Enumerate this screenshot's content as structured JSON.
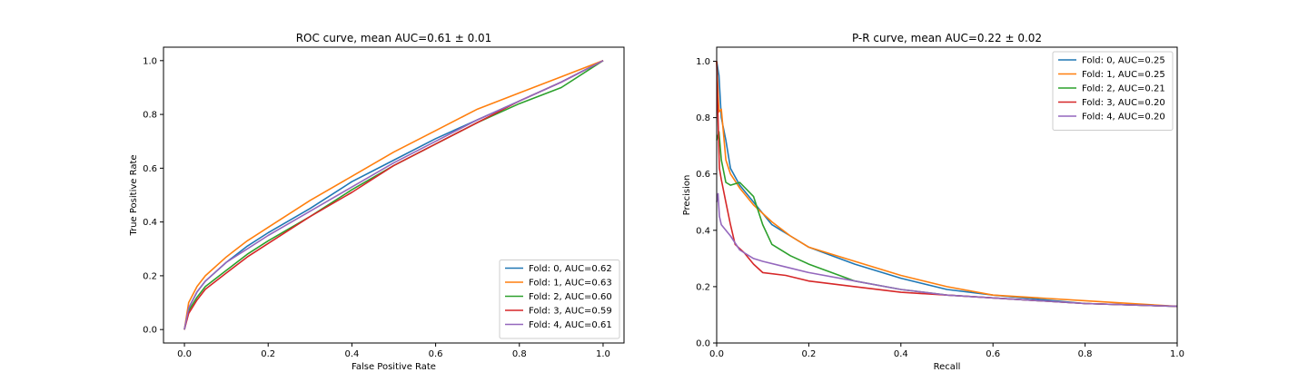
{
  "chart_data": [
    {
      "type": "line",
      "title": "ROC curve, mean AUC=0.61 ± 0.01",
      "xlabel": "False Positive Rate",
      "ylabel": "True Positive Rate",
      "xlim": [
        -0.05,
        1.05
      ],
      "ylim": [
        -0.05,
        1.05
      ],
      "xticks": [
        "0.0",
        "0.2",
        "0.4",
        "0.6",
        "0.8",
        "1.0"
      ],
      "yticks": [
        "0.0",
        "0.2",
        "0.4",
        "0.6",
        "0.8",
        "1.0"
      ],
      "grid": false,
      "legend_position": "lower right",
      "series": [
        {
          "name": "Fold: 0, AUC=0.62",
          "color": "#1f77b4",
          "x": [
            0,
            0.01,
            0.03,
            0.05,
            0.1,
            0.15,
            0.2,
            0.3,
            0.4,
            0.5,
            0.6,
            0.7,
            0.8,
            0.9,
            1.0
          ],
          "y": [
            0,
            0.08,
            0.14,
            0.18,
            0.25,
            0.31,
            0.36,
            0.45,
            0.55,
            0.63,
            0.71,
            0.78,
            0.85,
            0.92,
            1.0
          ]
        },
        {
          "name": "Fold: 1, AUC=0.63",
          "color": "#ff7f0e",
          "x": [
            0,
            0.01,
            0.03,
            0.05,
            0.1,
            0.15,
            0.2,
            0.3,
            0.4,
            0.5,
            0.6,
            0.7,
            0.8,
            0.9,
            1.0
          ],
          "y": [
            0,
            0.1,
            0.16,
            0.2,
            0.27,
            0.33,
            0.38,
            0.48,
            0.57,
            0.66,
            0.74,
            0.82,
            0.88,
            0.94,
            1.0
          ]
        },
        {
          "name": "Fold: 2, AUC=0.60",
          "color": "#2ca02c",
          "x": [
            0,
            0.01,
            0.03,
            0.05,
            0.1,
            0.15,
            0.2,
            0.3,
            0.4,
            0.5,
            0.6,
            0.7,
            0.8,
            0.9,
            1.0
          ],
          "y": [
            0,
            0.07,
            0.12,
            0.16,
            0.22,
            0.28,
            0.33,
            0.42,
            0.52,
            0.61,
            0.69,
            0.77,
            0.84,
            0.9,
            1.0
          ]
        },
        {
          "name": "Fold: 3, AUC=0.59",
          "color": "#d62728",
          "x": [
            0,
            0.01,
            0.03,
            0.05,
            0.1,
            0.15,
            0.2,
            0.3,
            0.4,
            0.5,
            0.6,
            0.7,
            0.8,
            0.9,
            1.0
          ],
          "y": [
            0,
            0.06,
            0.11,
            0.15,
            0.21,
            0.27,
            0.32,
            0.42,
            0.51,
            0.61,
            0.69,
            0.77,
            0.85,
            0.92,
            1.0
          ]
        },
        {
          "name": "Fold: 4, AUC=0.61",
          "color": "#9467bd",
          "x": [
            0,
            0.01,
            0.03,
            0.05,
            0.1,
            0.15,
            0.2,
            0.3,
            0.4,
            0.5,
            0.6,
            0.7,
            0.8,
            0.9,
            1.0
          ],
          "y": [
            0,
            0.08,
            0.14,
            0.18,
            0.25,
            0.3,
            0.35,
            0.44,
            0.53,
            0.62,
            0.7,
            0.78,
            0.85,
            0.92,
            1.0
          ]
        }
      ]
    },
    {
      "type": "line",
      "title": "P-R curve, mean AUC=0.22 ± 0.02",
      "xlabel": "Recall",
      "ylabel": "Precision",
      "xlim": [
        0,
        1
      ],
      "ylim": [
        0,
        1.05
      ],
      "xticks": [
        "0.0",
        "0.2",
        "0.4",
        "0.6",
        "0.8",
        "1.0"
      ],
      "yticks": [
        "0.0",
        "0.2",
        "0.4",
        "0.6",
        "0.8",
        "1.0"
      ],
      "grid": false,
      "legend_position": "upper right",
      "series": [
        {
          "name": "Fold: 0, AUC=0.25",
          "color": "#1f77b4",
          "x": [
            0,
            0.005,
            0.01,
            0.02,
            0.03,
            0.05,
            0.08,
            0.12,
            0.16,
            0.2,
            0.3,
            0.4,
            0.5,
            0.6,
            0.8,
            1.0
          ],
          "y": [
            1.0,
            0.95,
            0.8,
            0.72,
            0.62,
            0.56,
            0.5,
            0.42,
            0.38,
            0.34,
            0.28,
            0.23,
            0.19,
            0.17,
            0.14,
            0.13
          ]
        },
        {
          "name": "Fold: 1, AUC=0.25",
          "color": "#ff7f0e",
          "x": [
            0,
            0.005,
            0.01,
            0.02,
            0.03,
            0.05,
            0.08,
            0.12,
            0.16,
            0.2,
            0.3,
            0.4,
            0.5,
            0.6,
            0.8,
            1.0
          ],
          "y": [
            1.0,
            0.82,
            0.83,
            0.65,
            0.6,
            0.55,
            0.49,
            0.43,
            0.38,
            0.34,
            0.29,
            0.24,
            0.2,
            0.17,
            0.15,
            0.13
          ]
        },
        {
          "name": "Fold: 2, AUC=0.21",
          "color": "#2ca02c",
          "x": [
            0,
            0.005,
            0.01,
            0.02,
            0.03,
            0.05,
            0.08,
            0.1,
            0.12,
            0.16,
            0.2,
            0.3,
            0.4,
            0.5,
            0.6,
            0.8,
            1.0
          ],
          "y": [
            0.72,
            0.75,
            0.65,
            0.57,
            0.56,
            0.57,
            0.52,
            0.42,
            0.35,
            0.31,
            0.28,
            0.22,
            0.19,
            0.17,
            0.16,
            0.14,
            0.13
          ]
        },
        {
          "name": "Fold: 3, AUC=0.20",
          "color": "#d62728",
          "x": [
            0,
            0.003,
            0.006,
            0.01,
            0.02,
            0.03,
            0.04,
            0.06,
            0.08,
            0.1,
            0.15,
            0.2,
            0.3,
            0.4,
            0.5,
            0.6,
            0.8,
            1.0
          ],
          "y": [
            1.0,
            0.8,
            0.62,
            0.58,
            0.5,
            0.42,
            0.35,
            0.32,
            0.28,
            0.25,
            0.24,
            0.22,
            0.2,
            0.18,
            0.17,
            0.16,
            0.14,
            0.13
          ]
        },
        {
          "name": "Fold: 4, AUC=0.20",
          "color": "#9467bd",
          "x": [
            0,
            0.003,
            0.006,
            0.01,
            0.02,
            0.03,
            0.05,
            0.08,
            0.1,
            0.15,
            0.2,
            0.3,
            0.4,
            0.5,
            0.6,
            0.8,
            1.0
          ],
          "y": [
            0.5,
            0.53,
            0.45,
            0.42,
            0.4,
            0.38,
            0.33,
            0.3,
            0.29,
            0.27,
            0.25,
            0.22,
            0.19,
            0.17,
            0.16,
            0.14,
            0.13
          ]
        }
      ]
    }
  ]
}
